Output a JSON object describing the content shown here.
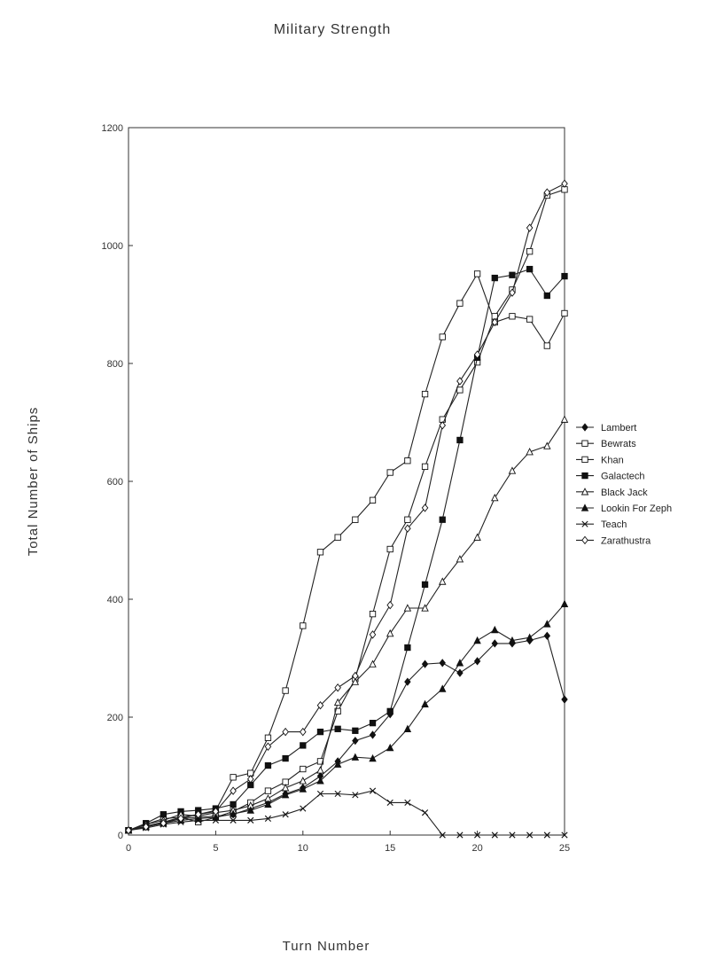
{
  "chart_data": {
    "type": "line",
    "title": "Military Strength",
    "xlabel": "Turn Number",
    "ylabel": "Total Number of Ships",
    "xlim": [
      0,
      25
    ],
    "ylim": [
      0,
      1200
    ],
    "xticks": [
      0,
      5,
      10,
      15,
      20,
      25
    ],
    "yticks": [
      0,
      200,
      400,
      600,
      800,
      1000,
      1200
    ],
    "grid": false,
    "legend_position": "right",
    "x": [
      0,
      1,
      2,
      3,
      4,
      5,
      6,
      7,
      8,
      9,
      10,
      11,
      12,
      13,
      14,
      15,
      16,
      17,
      18,
      19,
      20,
      21,
      22,
      23,
      24,
      25
    ],
    "series": [
      {
        "name": "Lambert",
        "marker": "diamond-filled",
        "values": [
          8,
          15,
          22,
          28,
          30,
          32,
          35,
          45,
          55,
          70,
          80,
          100,
          125,
          160,
          170,
          205,
          260,
          290,
          292,
          275,
          295,
          325,
          325,
          330,
          338,
          230
        ]
      },
      {
        "name": "Bewrats",
        "marker": "square-open",
        "values": [
          8,
          18,
          28,
          30,
          35,
          42,
          98,
          105,
          165,
          245,
          355,
          480,
          505,
          535,
          568,
          615,
          635,
          748,
          845,
          902,
          952,
          870,
          880,
          875,
          830,
          885
        ]
      },
      {
        "name": "Khan",
        "marker": "square-open",
        "values": [
          8,
          15,
          22,
          30,
          22,
          30,
          40,
          55,
          75,
          90,
          112,
          125,
          210,
          265,
          375,
          485,
          535,
          625,
          705,
          755,
          802,
          880,
          925,
          990,
          1085,
          1095
        ]
      },
      {
        "name": "Galactech",
        "marker": "square-filled",
        "values": [
          8,
          20,
          35,
          40,
          42,
          45,
          52,
          85,
          118,
          130,
          152,
          175,
          180,
          177,
          190,
          210,
          318,
          425,
          535,
          670,
          810,
          945,
          950,
          960,
          915,
          948
        ]
      },
      {
        "name": "Black Jack",
        "marker": "triangle-open",
        "values": [
          8,
          18,
          25,
          35,
          32,
          38,
          42,
          50,
          62,
          80,
          92,
          110,
          225,
          260,
          290,
          342,
          385,
          385,
          430,
          468,
          505,
          572,
          618,
          650,
          660,
          705
        ]
      },
      {
        "name": "Lookin For Zeph",
        "marker": "triangle-filled",
        "values": [
          8,
          14,
          20,
          25,
          28,
          30,
          36,
          42,
          52,
          68,
          78,
          92,
          120,
          132,
          130,
          148,
          180,
          222,
          248,
          292,
          330,
          348,
          330,
          335,
          358,
          392
        ]
      },
      {
        "name": "Teach",
        "marker": "x",
        "values": [
          8,
          12,
          18,
          22,
          25,
          25,
          25,
          25,
          28,
          35,
          45,
          70,
          70,
          68,
          75,
          55,
          55,
          38,
          0,
          0,
          0,
          0,
          0,
          0,
          0,
          0
        ]
      },
      {
        "name": "Zarathustra",
        "marker": "diamond-open",
        "values": [
          8,
          14,
          20,
          28,
          35,
          40,
          75,
          95,
          150,
          175,
          175,
          220,
          250,
          270,
          340,
          390,
          520,
          555,
          695,
          770,
          815,
          870,
          920,
          1030,
          1090,
          1105
        ]
      }
    ]
  }
}
